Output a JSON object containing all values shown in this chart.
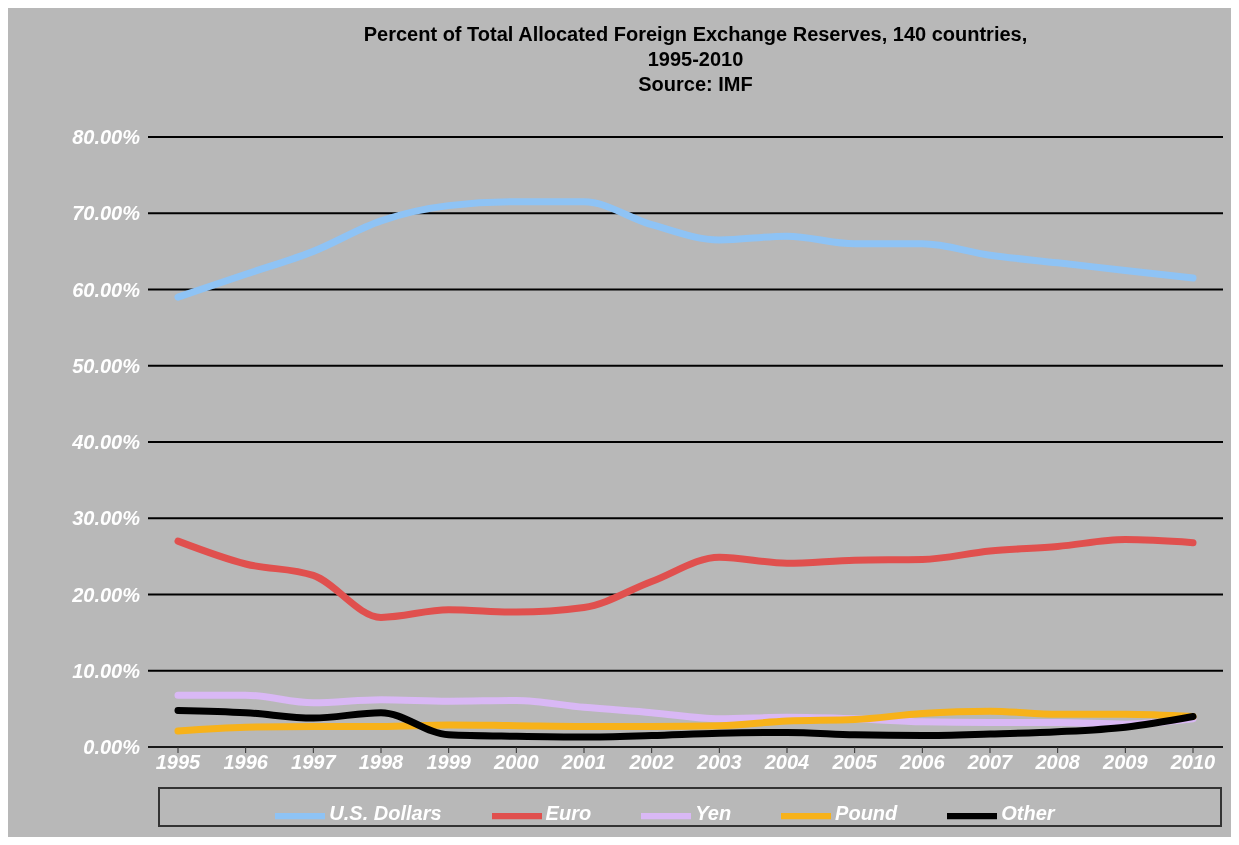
{
  "chart_data": {
    "type": "line",
    "title": "Percent of Total Allocated Foreign Exchange Reserves, 140 countries, 1995-2010",
    "subtitle": "Source: IMF",
    "categories": [
      "1995",
      "1996",
      "1997",
      "1998",
      "1999",
      "2000",
      "2001",
      "2002",
      "2003",
      "2004",
      "2005",
      "2006",
      "2007",
      "2008",
      "2009",
      "2010"
    ],
    "series": [
      {
        "name": "U.S. Dollars",
        "color": "#8ec3f5",
        "values": [
          59,
          62,
          65,
          69,
          71,
          71.5,
          71.5,
          68.5,
          66.5,
          67,
          66,
          66,
          64.5,
          63.5,
          62.5,
          61.5
        ]
      },
      {
        "name": "Euro",
        "color": "#e0504e",
        "values": [
          27,
          24,
          22.5,
          17,
          18,
          17.7,
          18.3,
          21.7,
          24.9,
          24.1,
          24.5,
          24.6,
          25.7,
          26.3,
          27.2,
          26.8
        ]
      },
      {
        "name": "Yen",
        "color": "#d9b8f5",
        "values": [
          6.8,
          6.8,
          5.8,
          6.2,
          6,
          6.1,
          5.2,
          4.5,
          3.7,
          3.9,
          3.7,
          3.3,
          3.2,
          3.2,
          3,
          3.7
        ]
      },
      {
        "name": "Pound",
        "color": "#f7b21a",
        "values": [
          2.1,
          2.6,
          2.7,
          2.7,
          2.9,
          2.8,
          2.7,
          2.7,
          2.8,
          3.4,
          3.6,
          4.4,
          4.7,
          4.3,
          4.3,
          4
        ]
      },
      {
        "name": "Other",
        "color": "#000000",
        "values": [
          4.8,
          4.5,
          3.8,
          4.5,
          1.6,
          1.4,
          1.3,
          1.5,
          1.8,
          1.9,
          1.6,
          1.5,
          1.7,
          2,
          2.6,
          4
        ]
      }
    ],
    "ylim": [
      0,
      80
    ],
    "yticks": [
      {
        "value": 0,
        "label": "0.00%"
      },
      {
        "value": 10,
        "label": "10.00%"
      },
      {
        "value": 20,
        "label": "20.00%"
      },
      {
        "value": 30,
        "label": "30.00%"
      },
      {
        "value": 40,
        "label": "40.00%"
      },
      {
        "value": 50,
        "label": "50.00%"
      },
      {
        "value": 60,
        "label": "60.00%"
      },
      {
        "value": 70,
        "label": "70.00%"
      },
      {
        "value": 80,
        "label": "80.00%"
      }
    ],
    "grid": "y",
    "legend": "bottom",
    "marker": "none",
    "line_style": "solid"
  }
}
